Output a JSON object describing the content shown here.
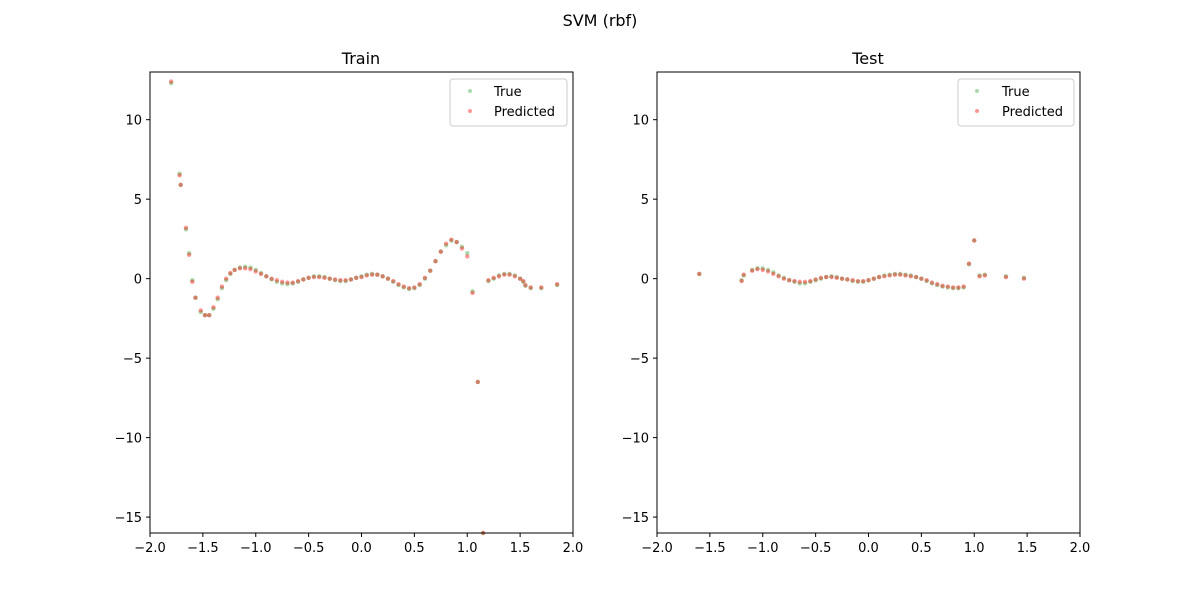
{
  "figure": {
    "suptitle": "SVM (rbf)"
  },
  "colors": {
    "true": "#2ca02c",
    "predicted": "#ff0000",
    "axis": "#000000",
    "legend_border": "#cccccc"
  },
  "chart_data": [
    {
      "type": "scatter",
      "title": "Train",
      "xlabel": "",
      "ylabel": "",
      "xlim": [
        -2.0,
        2.0
      ],
      "ylim": [
        -16,
        13
      ],
      "grid": false,
      "legend_position": "top-right",
      "xticks": [
        -2.0,
        -1.5,
        -1.0,
        -0.5,
        0.0,
        0.5,
        1.0,
        1.5,
        2.0
      ],
      "xtick_labels": [
        "−2.0",
        "−1.5",
        "−1.0",
        "−0.5",
        "0.0",
        "0.5",
        "1.0",
        "1.5",
        "2.0"
      ],
      "yticks": [
        10,
        5,
        0,
        -5,
        -10,
        -15
      ],
      "ytick_labels": [
        "10",
        "5",
        "0",
        "−5",
        "−10",
        "−15"
      ],
      "series": [
        {
          "name": "True",
          "color": "#2ca02c",
          "x": [
            -1.8,
            -1.72,
            -1.71,
            -1.66,
            -1.63,
            -1.6,
            -1.57,
            -1.52,
            -1.48,
            -1.44,
            -1.4,
            -1.36,
            -1.32,
            -1.28,
            -1.24,
            -1.2,
            -1.15,
            -1.1,
            -1.05,
            -1.0,
            -0.95,
            -0.9,
            -0.85,
            -0.8,
            -0.75,
            -0.7,
            -0.65,
            -0.6,
            -0.55,
            -0.5,
            -0.45,
            -0.4,
            -0.35,
            -0.3,
            -0.25,
            -0.2,
            -0.15,
            -0.1,
            -0.05,
            0.0,
            0.05,
            0.1,
            0.15,
            0.2,
            0.25,
            0.3,
            0.35,
            0.4,
            0.45,
            0.5,
            0.55,
            0.6,
            0.65,
            0.7,
            0.75,
            0.8,
            0.85,
            0.9,
            0.95,
            1.0,
            1.05,
            1.1,
            1.15,
            1.2,
            1.25,
            1.3,
            1.35,
            1.4,
            1.45,
            1.5,
            1.53,
            1.55,
            1.6,
            1.7,
            1.85
          ],
          "y": [
            12.3,
            6.6,
            5.9,
            3.1,
            1.6,
            -0.1,
            -1.2,
            -2.1,
            -2.3,
            -2.3,
            -1.9,
            -1.3,
            -0.6,
            -0.1,
            0.3,
            0.55,
            0.7,
            0.75,
            0.7,
            0.55,
            0.35,
            0.15,
            -0.05,
            -0.2,
            -0.3,
            -0.35,
            -0.3,
            -0.2,
            -0.05,
            0.05,
            0.15,
            0.15,
            0.1,
            0.0,
            -0.1,
            -0.15,
            -0.15,
            -0.05,
            0.05,
            0.15,
            0.25,
            0.3,
            0.25,
            0.15,
            0.0,
            -0.2,
            -0.4,
            -0.55,
            -0.65,
            -0.6,
            -0.4,
            0.0,
            0.5,
            1.1,
            1.7,
            2.1,
            2.4,
            2.3,
            2.0,
            1.6,
            -0.8,
            -6.5,
            -16.0,
            -0.15,
            0.0,
            0.2,
            0.3,
            0.3,
            0.2,
            0.0,
            -0.2,
            -0.45,
            -0.6,
            -0.6,
            -0.4
          ]
        },
        {
          "name": "Predicted",
          "color": "#ff0000",
          "x": [
            -1.8,
            -1.72,
            -1.71,
            -1.66,
            -1.63,
            -1.6,
            -1.57,
            -1.52,
            -1.48,
            -1.44,
            -1.4,
            -1.36,
            -1.32,
            -1.28,
            -1.24,
            -1.2,
            -1.15,
            -1.1,
            -1.05,
            -1.0,
            -0.95,
            -0.9,
            -0.85,
            -0.8,
            -0.75,
            -0.7,
            -0.65,
            -0.6,
            -0.55,
            -0.5,
            -0.45,
            -0.4,
            -0.35,
            -0.3,
            -0.25,
            -0.2,
            -0.15,
            -0.1,
            -0.05,
            0.0,
            0.05,
            0.1,
            0.15,
            0.2,
            0.25,
            0.3,
            0.35,
            0.4,
            0.45,
            0.5,
            0.55,
            0.6,
            0.65,
            0.7,
            0.75,
            0.8,
            0.85,
            0.9,
            0.95,
            1.0,
            1.05,
            1.1,
            1.15,
            1.2,
            1.25,
            1.3,
            1.35,
            1.4,
            1.45,
            1.5,
            1.53,
            1.55,
            1.6,
            1.7,
            1.85
          ],
          "y": [
            12.4,
            6.5,
            5.9,
            3.2,
            1.5,
            -0.2,
            -1.2,
            -2.0,
            -2.3,
            -2.3,
            -1.8,
            -1.2,
            -0.5,
            0.0,
            0.35,
            0.55,
            0.65,
            0.65,
            0.6,
            0.45,
            0.3,
            0.15,
            0.0,
            -0.1,
            -0.2,
            -0.25,
            -0.25,
            -0.15,
            -0.05,
            0.05,
            0.1,
            0.1,
            0.05,
            0.0,
            -0.05,
            -0.1,
            -0.1,
            -0.05,
            0.05,
            0.1,
            0.2,
            0.25,
            0.25,
            0.15,
            0.0,
            -0.15,
            -0.35,
            -0.5,
            -0.6,
            -0.55,
            -0.35,
            0.05,
            0.5,
            1.1,
            1.7,
            2.2,
            2.45,
            2.3,
            1.9,
            1.4,
            -0.9,
            -6.5,
            -16.0,
            -0.1,
            0.05,
            0.15,
            0.25,
            0.25,
            0.15,
            0.0,
            -0.15,
            -0.4,
            -0.55,
            -0.55,
            -0.35
          ]
        }
      ]
    },
    {
      "type": "scatter",
      "title": "Test",
      "xlabel": "",
      "ylabel": "",
      "xlim": [
        -2.0,
        2.0
      ],
      "ylim": [
        -16,
        13
      ],
      "grid": false,
      "legend_position": "top-right",
      "xticks": [
        -2.0,
        -1.5,
        -1.0,
        -0.5,
        0.0,
        0.5,
        1.0,
        1.5,
        2.0
      ],
      "xtick_labels": [
        "−2.0",
        "−1.5",
        "−1.0",
        "−0.5",
        "0.0",
        "0.5",
        "1.0",
        "1.5",
        "2.0"
      ],
      "yticks": [
        10,
        5,
        0,
        -5,
        -10,
        -15
      ],
      "ytick_labels": [
        "10",
        "5",
        "0",
        "−5",
        "−10",
        "−15"
      ],
      "series": [
        {
          "name": "True",
          "color": "#2ca02c",
          "x": [
            -1.6,
            -1.2,
            -1.18,
            -1.1,
            -1.05,
            -1.0,
            -0.95,
            -0.9,
            -0.85,
            -0.8,
            -0.75,
            -0.7,
            -0.65,
            -0.6,
            -0.55,
            -0.5,
            -0.45,
            -0.4,
            -0.35,
            -0.3,
            -0.25,
            -0.2,
            -0.15,
            -0.1,
            -0.05,
            0.0,
            0.05,
            0.1,
            0.15,
            0.2,
            0.25,
            0.3,
            0.35,
            0.4,
            0.45,
            0.5,
            0.55,
            0.6,
            0.65,
            0.7,
            0.75,
            0.8,
            0.85,
            0.9,
            0.95,
            1.0,
            1.05,
            1.1,
            1.3,
            1.47
          ],
          "y": [
            0.3,
            -0.1,
            0.2,
            0.55,
            0.65,
            0.65,
            0.55,
            0.4,
            0.2,
            0.05,
            -0.1,
            -0.2,
            -0.3,
            -0.3,
            -0.2,
            -0.1,
            0.0,
            0.1,
            0.15,
            0.1,
            0.0,
            -0.05,
            -0.15,
            -0.2,
            -0.2,
            -0.1,
            0.0,
            0.1,
            0.2,
            0.25,
            0.3,
            0.3,
            0.25,
            0.2,
            0.1,
            0.0,
            -0.15,
            -0.3,
            -0.4,
            -0.5,
            -0.55,
            -0.6,
            -0.6,
            -0.55,
            0.9,
            2.4,
            0.2,
            0.25,
            0.15,
            0.05
          ]
        },
        {
          "name": "Predicted",
          "color": "#ff0000",
          "x": [
            -1.6,
            -1.2,
            -1.18,
            -1.1,
            -1.05,
            -1.0,
            -0.95,
            -0.9,
            -0.85,
            -0.8,
            -0.75,
            -0.7,
            -0.65,
            -0.6,
            -0.55,
            -0.5,
            -0.45,
            -0.4,
            -0.35,
            -0.3,
            -0.25,
            -0.2,
            -0.15,
            -0.1,
            -0.05,
            0.0,
            0.05,
            0.1,
            0.15,
            0.2,
            0.25,
            0.3,
            0.35,
            0.4,
            0.45,
            0.5,
            0.55,
            0.6,
            0.65,
            0.7,
            0.75,
            0.8,
            0.85,
            0.9,
            0.95,
            1.0,
            1.05,
            1.1,
            1.3,
            1.47
          ],
          "y": [
            0.3,
            -0.15,
            0.25,
            0.5,
            0.6,
            0.55,
            0.45,
            0.3,
            0.15,
            0.0,
            -0.1,
            -0.15,
            -0.2,
            -0.2,
            -0.15,
            -0.05,
            0.05,
            0.1,
            0.1,
            0.05,
            0.0,
            -0.05,
            -0.1,
            -0.15,
            -0.15,
            -0.1,
            0.0,
            0.1,
            0.15,
            0.2,
            0.25,
            0.25,
            0.2,
            0.15,
            0.1,
            0.0,
            -0.1,
            -0.25,
            -0.35,
            -0.45,
            -0.5,
            -0.55,
            -0.55,
            -0.5,
            0.95,
            2.4,
            0.15,
            0.2,
            0.1,
            0.0
          ]
        }
      ]
    }
  ]
}
